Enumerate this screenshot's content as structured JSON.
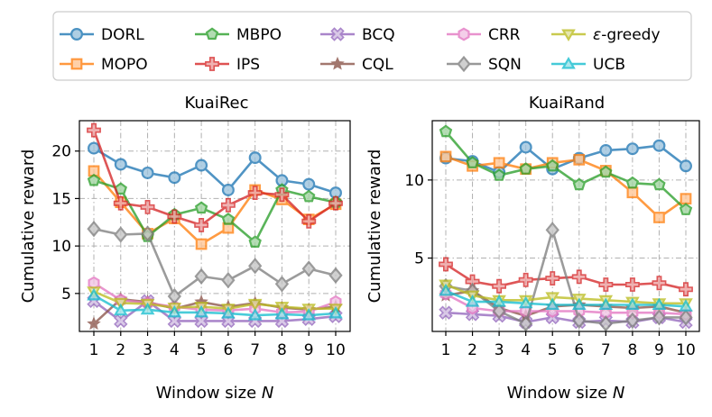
{
  "legend": {
    "entries": [
      "DORL",
      "MOPO",
      "MBPO",
      "IPS",
      "BCQ",
      "CQL",
      "CRR",
      "SQN",
      "ε-greedy",
      "UCB"
    ]
  },
  "series_style": {
    "DORL": {
      "color": "#1f77b4",
      "marker": "circle"
    },
    "MOPO": {
      "color": "#ff7f0e",
      "marker": "square"
    },
    "MBPO": {
      "color": "#2ca02c",
      "marker": "pentagon"
    },
    "IPS": {
      "color": "#d62728",
      "marker": "plus"
    },
    "BCQ": {
      "color": "#9467bd",
      "marker": "x"
    },
    "CQL": {
      "color": "#8c564b",
      "marker": "star"
    },
    "CRR": {
      "color": "#e377c2",
      "marker": "hexagon"
    },
    "SQN": {
      "color": "#7f7f7f",
      "marker": "diamond"
    },
    "ε-greedy": {
      "color": "#bcbd22",
      "marker": "triangle-down"
    },
    "UCB": {
      "color": "#17becf",
      "marker": "triangle-up"
    }
  },
  "chart_data": [
    {
      "type": "line",
      "title": "KuaiRec",
      "xlabel": "Window size N",
      "ylabel": "Cumulative reward",
      "x": [
        1,
        2,
        3,
        4,
        5,
        6,
        7,
        8,
        9,
        10
      ],
      "xticks": [
        "1",
        "2",
        "3",
        "4",
        "5",
        "6",
        "7",
        "8",
        "9",
        "10"
      ],
      "yticks": [
        5,
        10,
        15,
        20
      ],
      "ylim": [
        1.0,
        23.2
      ],
      "grid": true,
      "series": [
        {
          "name": "DORL",
          "values": [
            20.3,
            18.6,
            17.7,
            17.2,
            18.5,
            15.9,
            19.3,
            16.9,
            16.5,
            15.6
          ]
        },
        {
          "name": "MOPO",
          "values": [
            17.9,
            14.6,
            11.3,
            12.9,
            10.2,
            11.9,
            15.9,
            14.9,
            12.8,
            14.4
          ]
        },
        {
          "name": "MBPO",
          "values": [
            16.9,
            16.0,
            11.0,
            13.3,
            14.0,
            12.8,
            10.4,
            15.9,
            15.2,
            14.6
          ]
        },
        {
          "name": "IPS",
          "values": [
            22.2,
            14.5,
            14.1,
            13.1,
            12.2,
            14.3,
            15.6,
            15.4,
            12.6,
            14.5
          ]
        },
        {
          "name": "BCQ",
          "values": [
            4.2,
            2.1,
            4.2,
            2.1,
            2.1,
            2.1,
            2.1,
            2.1,
            2.3,
            2.6
          ]
        },
        {
          "name": "CQL",
          "values": [
            1.8,
            4.4,
            4.1,
            3.4,
            4.1,
            3.6,
            4.0,
            3.5,
            3.3,
            3.6
          ]
        },
        {
          "name": "CRR",
          "values": [
            6.1,
            4.3,
            4.0,
            3.6,
            3.3,
            3.2,
            3.4,
            3.0,
            3.1,
            4.1
          ]
        },
        {
          "name": "SQN",
          "values": [
            11.8,
            11.2,
            11.3,
            4.7,
            6.8,
            6.4,
            7.9,
            6.0,
            7.6,
            6.9
          ]
        },
        {
          "name": "ε-greedy",
          "values": [
            5.2,
            4.0,
            3.9,
            3.5,
            3.6,
            3.4,
            3.9,
            3.6,
            3.4,
            3.4
          ]
        },
        {
          "name": "UCB",
          "values": [
            4.8,
            3.2,
            3.3,
            3.0,
            3.0,
            2.9,
            2.7,
            2.8,
            2.7,
            2.9
          ]
        }
      ]
    },
    {
      "type": "line",
      "title": "KuaiRand",
      "xlabel": "Window size N",
      "ylabel": "Cumulative reward",
      "x": [
        1,
        2,
        3,
        4,
        5,
        6,
        7,
        8,
        9,
        10
      ],
      "xticks": [
        "1",
        "2",
        "3",
        "4",
        "5",
        "6",
        "7",
        "8",
        "9",
        "10"
      ],
      "yticks": [
        5,
        10
      ],
      "ylim": [
        0.3,
        13.8
      ],
      "grid": true,
      "series": [
        {
          "name": "DORL",
          "values": [
            11.4,
            11.2,
            10.5,
            12.1,
            10.7,
            11.4,
            11.9,
            12.0,
            12.2,
            10.9
          ]
        },
        {
          "name": "MOPO",
          "values": [
            11.5,
            10.9,
            11.1,
            10.7,
            11.1,
            11.3,
            10.6,
            9.2,
            7.6,
            8.8
          ]
        },
        {
          "name": "MBPO",
          "values": [
            13.1,
            11.1,
            10.3,
            10.7,
            10.9,
            9.7,
            10.5,
            9.8,
            9.7,
            8.1
          ]
        },
        {
          "name": "IPS",
          "values": [
            4.6,
            3.5,
            3.2,
            3.6,
            3.7,
            3.8,
            3.3,
            3.3,
            3.4,
            3.0
          ]
        },
        {
          "name": "BCQ",
          "values": [
            1.5,
            1.4,
            1.3,
            0.9,
            1.2,
            0.9,
            1.0,
            0.9,
            1.2,
            0.9
          ]
        },
        {
          "name": "CQL",
          "values": [
            2.6,
            2.9,
            1.8,
            1.3,
            1.9,
            2.0,
            1.9,
            1.8,
            1.9,
            1.5
          ]
        },
        {
          "name": "CRR",
          "values": [
            2.7,
            1.8,
            1.6,
            1.6,
            1.6,
            1.6,
            1.5,
            1.5,
            1.5,
            1.4
          ]
        },
        {
          "name": "SQN",
          "values": [
            3.2,
            2.9,
            1.6,
            0.8,
            6.8,
            1.0,
            0.8,
            1.0,
            1.2,
            1.2
          ]
        },
        {
          "name": "ε-greedy",
          "values": [
            3.3,
            2.6,
            2.3,
            2.3,
            2.5,
            2.4,
            2.3,
            2.2,
            2.1,
            2.1
          ]
        },
        {
          "name": "UCB",
          "values": [
            2.9,
            2.2,
            2.2,
            2.1,
            2.0,
            2.0,
            2.0,
            2.0,
            2.0,
            1.9
          ]
        }
      ]
    }
  ]
}
